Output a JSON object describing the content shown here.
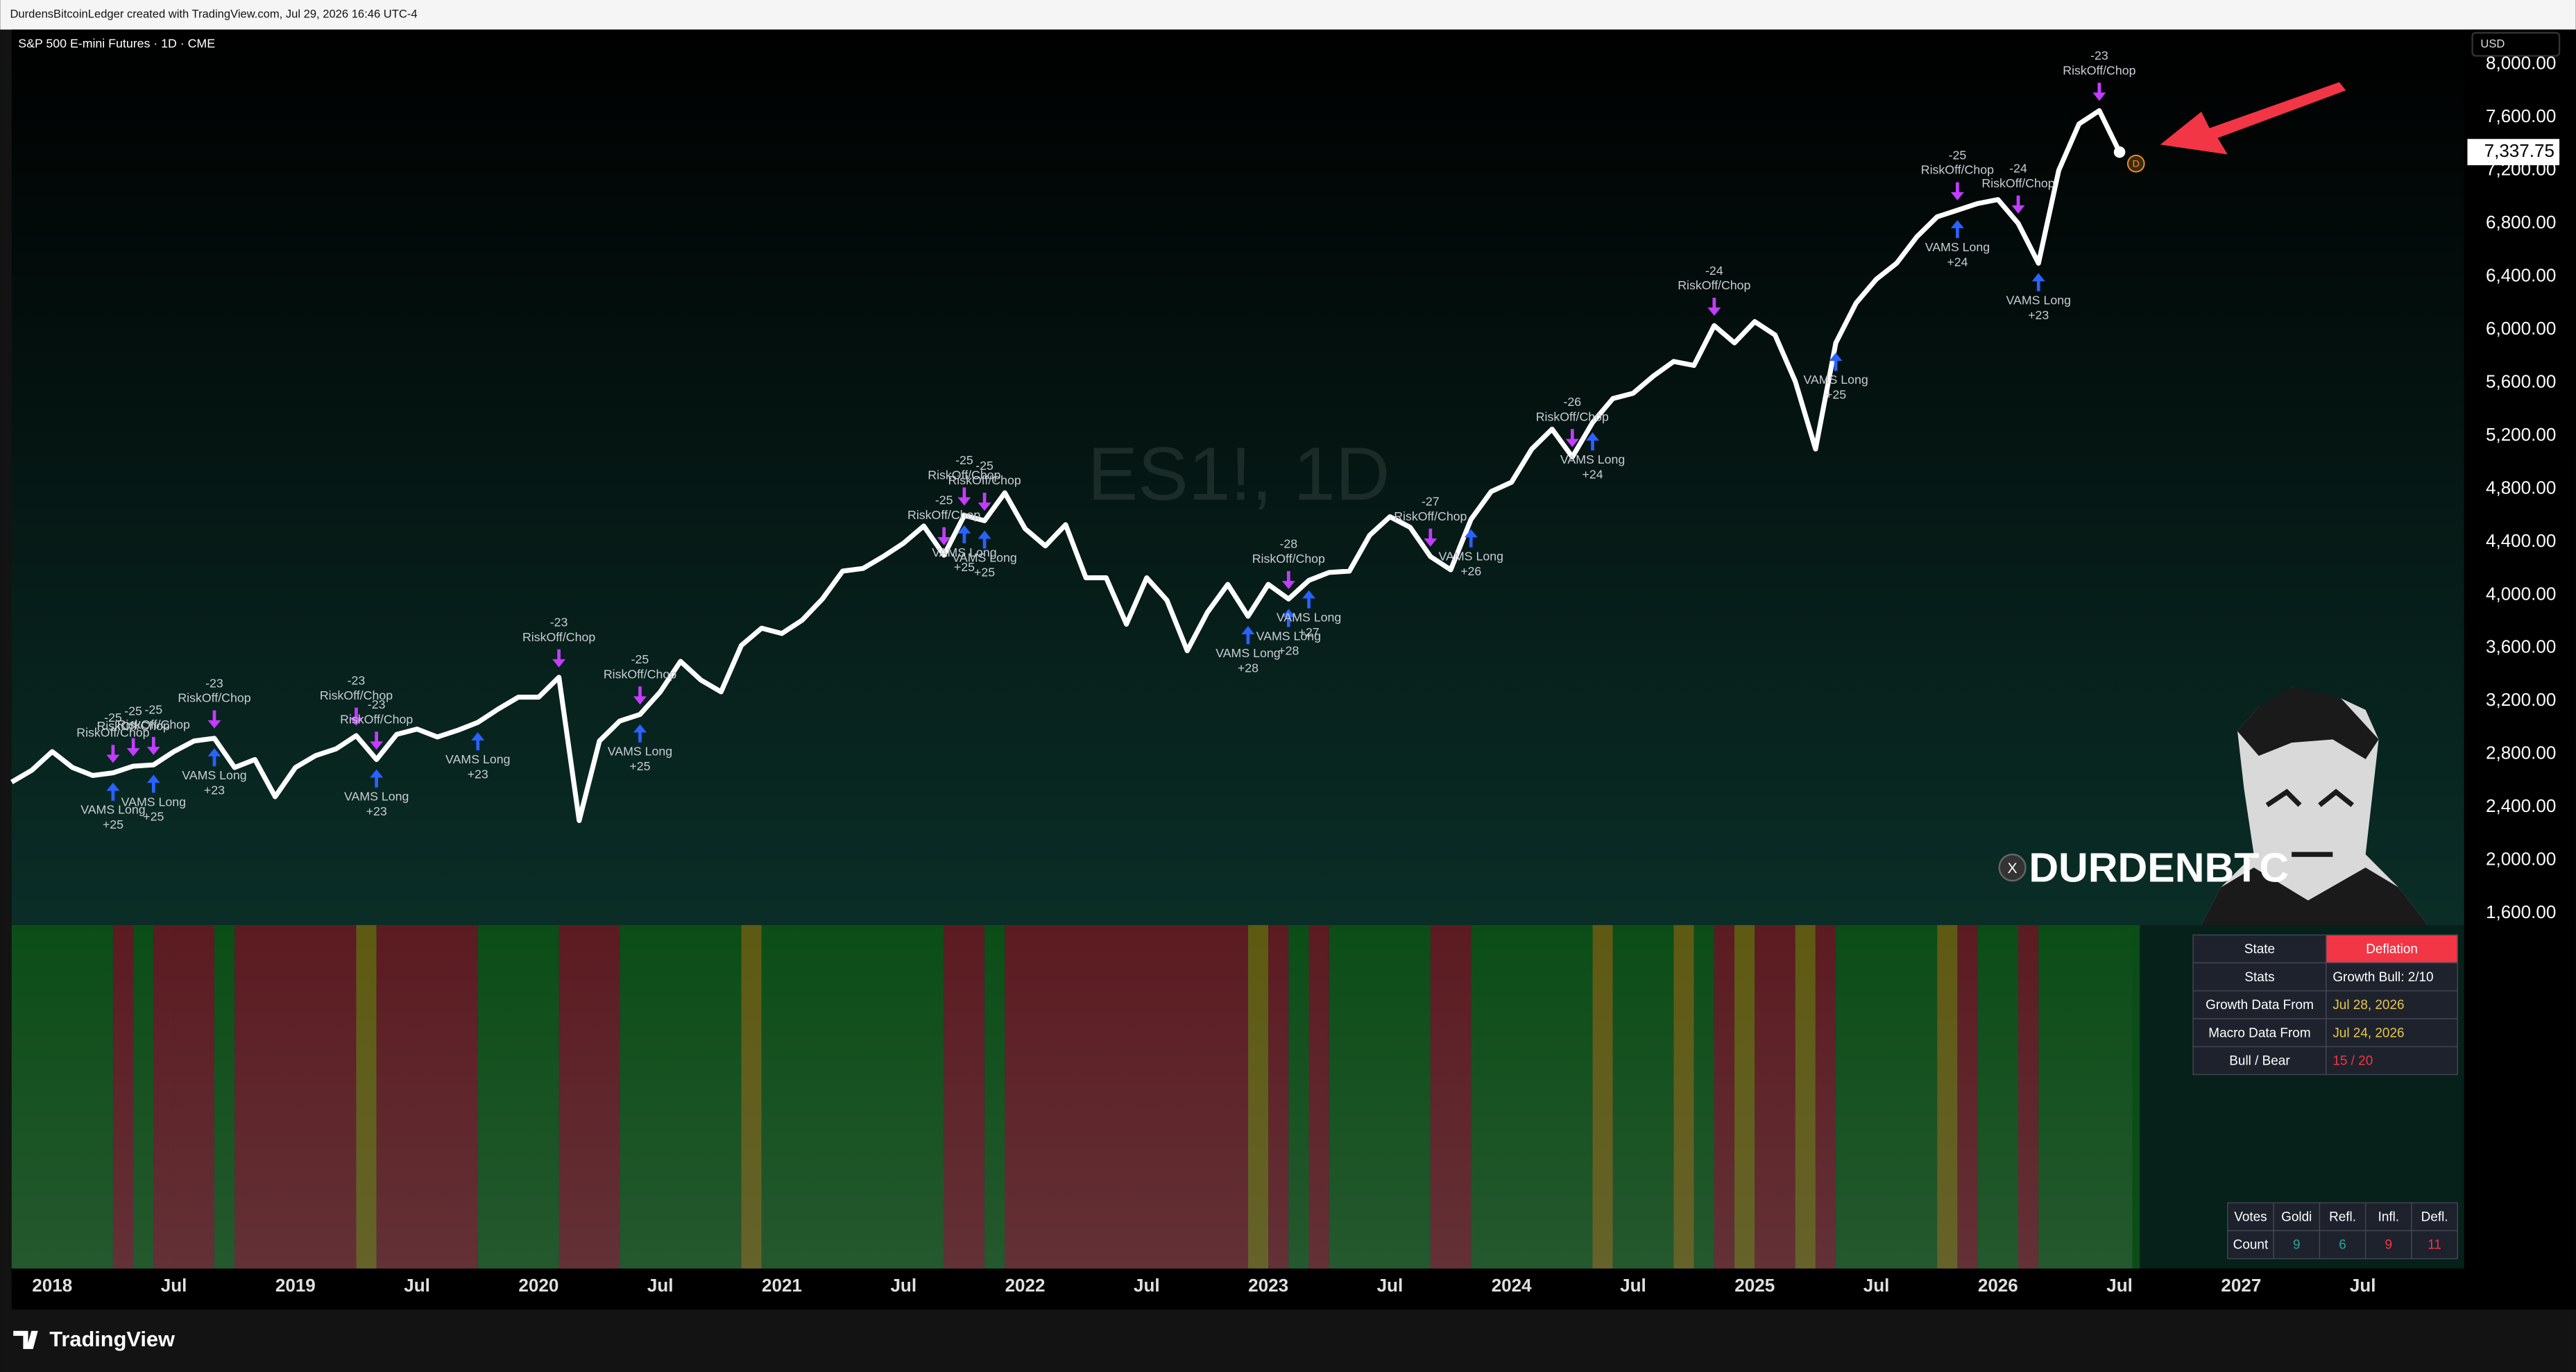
{
  "header": "DurdensBitcoinLedger created with TradingView.com, Jul 29, 2026 16:46 UTC-4",
  "symbol": "S&P 500 E-mini Futures · 1D · CME",
  "watermark": "ES1!, 1D",
  "currency": "USD",
  "brand": "TradingView",
  "handle": "DURDENBTC",
  "x_icon": "X",
  "interval_badge": "D",
  "last_price_label": "7,337.75",
  "chart_data": {
    "type": "line",
    "color": "#ffffff",
    "x": [
      "2017-11",
      "2017-12",
      "2018-01",
      "2018-02",
      "2018-03",
      "2018-04",
      "2018-05",
      "2018-06",
      "2018-07",
      "2018-08",
      "2018-09",
      "2018-10",
      "2018-11",
      "2018-12",
      "2019-01",
      "2019-02",
      "2019-03",
      "2019-04",
      "2019-05",
      "2019-06",
      "2019-07",
      "2019-08",
      "2019-09",
      "2019-10",
      "2019-11",
      "2019-12",
      "2020-01",
      "2020-02",
      "2020-03",
      "2020-04",
      "2020-05",
      "2020-06",
      "2020-07",
      "2020-08",
      "2020-09",
      "2020-10",
      "2020-11",
      "2020-12",
      "2021-01",
      "2021-02",
      "2021-03",
      "2021-04",
      "2021-05",
      "2021-06",
      "2021-07",
      "2021-08",
      "2021-09",
      "2021-10",
      "2021-11",
      "2021-12",
      "2022-01",
      "2022-02",
      "2022-03",
      "2022-04",
      "2022-05",
      "2022-06",
      "2022-07",
      "2022-08",
      "2022-09",
      "2022-10",
      "2022-11",
      "2022-12",
      "2023-01",
      "2023-02",
      "2023-03",
      "2023-04",
      "2023-05",
      "2023-06",
      "2023-07",
      "2023-08",
      "2023-09",
      "2023-10",
      "2023-11",
      "2023-12",
      "2024-01",
      "2024-02",
      "2024-03",
      "2024-04",
      "2024-05",
      "2024-06",
      "2024-07",
      "2024-08",
      "2024-09",
      "2024-10",
      "2024-11",
      "2024-12",
      "2025-01",
      "2025-02",
      "2025-03",
      "2025-04",
      "2025-05",
      "2025-06",
      "2025-07",
      "2025-08",
      "2025-09",
      "2025-10",
      "2025-11",
      "2025-12",
      "2026-01",
      "2026-02",
      "2026-03",
      "2026-04",
      "2026-05",
      "2026-06",
      "2026-07"
    ],
    "values": [
      2590,
      2680,
      2820,
      2700,
      2640,
      2660,
      2710,
      2720,
      2820,
      2900,
      2920,
      2700,
      2760,
      2480,
      2700,
      2790,
      2840,
      2940,
      2760,
      2950,
      2990,
      2930,
      2980,
      3040,
      3140,
      3230,
      3230,
      3380,
      2300,
      2900,
      3050,
      3100,
      3270,
      3500,
      3360,
      3270,
      3620,
      3750,
      3710,
      3810,
      3970,
      4180,
      4200,
      4290,
      4390,
      4520,
      4300,
      4600,
      4560,
      4770,
      4500,
      4370,
      4530,
      4130,
      4130,
      3780,
      4130,
      3960,
      3580,
      3870,
      4080,
      3840,
      4080,
      3970,
      4110,
      4170,
      4180,
      4450,
      4590,
      4510,
      4290,
      4190,
      4570,
      4780,
      4850,
      5100,
      5250,
      5040,
      5300,
      5480,
      5520,
      5650,
      5760,
      5730,
      6030,
      5900,
      6060,
      5960,
      5610,
      5100,
      5900,
      6200,
      6380,
      6500,
      6700,
      6850,
      6900,
      6950,
      6980,
      6800,
      6500,
      7200,
      7550,
      7650,
      7337.75
    ],
    "xlim": [
      "2017-11",
      "2027-12"
    ],
    "xticks": [
      {
        "value": "2018-01",
        "label": "2018"
      },
      {
        "value": "2018-07",
        "label": "Jul"
      },
      {
        "value": "2019-01",
        "label": "2019"
      },
      {
        "value": "2019-07",
        "label": "Jul"
      },
      {
        "value": "2020-01",
        "label": "2020"
      },
      {
        "value": "2020-07",
        "label": "Jul"
      },
      {
        "value": "2021-01",
        "label": "2021"
      },
      {
        "value": "2021-07",
        "label": "Jul"
      },
      {
        "value": "2022-01",
        "label": "2022"
      },
      {
        "value": "2022-07",
        "label": "Jul"
      },
      {
        "value": "2023-01",
        "label": "2023"
      },
      {
        "value": "2023-07",
        "label": "Jul"
      },
      {
        "value": "2024-01",
        "label": "2024"
      },
      {
        "value": "2024-07",
        "label": "Jul"
      },
      {
        "value": "2025-01",
        "label": "2025"
      },
      {
        "value": "2025-07",
        "label": "Jul"
      },
      {
        "value": "2026-01",
        "label": "2026"
      },
      {
        "value": "2026-07",
        "label": "Jul"
      },
      {
        "value": "2027-01",
        "label": "2027"
      },
      {
        "value": "2027-07",
        "label": "Jul"
      }
    ],
    "ylim": [
      1525,
      8261
    ],
    "yticks": [
      {
        "value": 1600,
        "label": "1,600.00"
      },
      {
        "value": 2000,
        "label": "2,000.00"
      },
      {
        "value": 2400,
        "label": "2,400.00"
      },
      {
        "value": 2800,
        "label": "2,800.00"
      },
      {
        "value": 3200,
        "label": "3,200.00"
      },
      {
        "value": 3600,
        "label": "3,600.00"
      },
      {
        "value": 4000,
        "label": "4,000.00"
      },
      {
        "value": 4400,
        "label": "4,400.00"
      },
      {
        "value": 4800,
        "label": "4,800.00"
      },
      {
        "value": 5200,
        "label": "5,200.00"
      },
      {
        "value": 5600,
        "label": "5,600.00"
      },
      {
        "value": 6000,
        "label": "6,000.00"
      },
      {
        "value": 6400,
        "label": "6,400.00"
      },
      {
        "value": 6800,
        "label": "6,800.00"
      },
      {
        "value": 7200,
        "label": "7,200.00"
      },
      {
        "value": 7600,
        "label": "7,600.00"
      },
      {
        "value": 8000,
        "label": "8,000.00"
      }
    ],
    "grid": false,
    "signals": [
      {
        "date": "2018-04",
        "label": "RiskOff/Chop",
        "score": -25
      },
      {
        "date": "2018-05",
        "label": "RiskOff/Chop",
        "score": -25
      },
      {
        "date": "2018-06",
        "label": "RiskOff/Chop",
        "score": -25
      },
      {
        "date": "2018-09",
        "label": "RiskOff/Chop",
        "score": -23
      },
      {
        "date": "2019-04",
        "label": "RiskOff/Chop",
        "score": -23
      },
      {
        "date": "2019-05",
        "label": "RiskOff/Chop",
        "score": -23
      },
      {
        "date": "2020-02",
        "label": "RiskOff/Chop",
        "score": -23
      },
      {
        "date": "2020-06",
        "label": "RiskOff/Chop",
        "score": -25
      },
      {
        "date": "2021-09",
        "label": "RiskOff/Chop",
        "score": -25
      },
      {
        "date": "2021-10",
        "label": "RiskOff/Chop",
        "score": -25
      },
      {
        "date": "2021-11",
        "label": "RiskOff/Chop",
        "score": -25
      },
      {
        "date": "2023-02",
        "label": "RiskOff/Chop",
        "score": -28
      },
      {
        "date": "2023-09",
        "label": "RiskOff/Chop",
        "score": -27
      },
      {
        "date": "2024-04",
        "label": "RiskOff/Chop",
        "score": -26
      },
      {
        "date": "2024-11",
        "label": "RiskOff/Chop",
        "score": -24
      },
      {
        "date": "2025-11",
        "label": "RiskOff/Chop",
        "score": -25
      },
      {
        "date": "2026-02",
        "label": "RiskOff/Chop",
        "score": -24
      },
      {
        "date": "2026-06",
        "label": "RiskOff/Chop",
        "score": -23
      },
      {
        "date": "2018-04",
        "label": "VAMS Long",
        "score": "+25"
      },
      {
        "date": "2018-06",
        "label": "VAMS Long",
        "score": "+25"
      },
      {
        "date": "2018-09",
        "label": "VAMS Long",
        "score": "+23"
      },
      {
        "date": "2019-05",
        "label": "VAMS Long",
        "score": "+23"
      },
      {
        "date": "2019-10",
        "label": "VAMS Long",
        "score": "+23"
      },
      {
        "date": "2020-06",
        "label": "VAMS Long",
        "score": "+25"
      },
      {
        "date": "2021-10",
        "label": "VAMS Long",
        "score": "+25"
      },
      {
        "date": "2021-11",
        "label": "VAMS Long",
        "score": "+25"
      },
      {
        "date": "2022-12",
        "label": "VAMS Long",
        "score": "+28"
      },
      {
        "date": "2023-02",
        "label": "VAMS Long",
        "score": "+28"
      },
      {
        "date": "2023-03",
        "label": "VAMS Long",
        "score": "+27"
      },
      {
        "date": "2023-11",
        "label": "VAMS Long",
        "score": "+26"
      },
      {
        "date": "2024-05",
        "label": "VAMS Long",
        "score": "+24"
      },
      {
        "date": "2025-05",
        "label": "VAMS Long",
        "score": "+25"
      },
      {
        "date": "2025-11",
        "label": "VAMS Long",
        "score": "+24"
      },
      {
        "date": "2026-03",
        "label": "VAMS Long",
        "score": "+23"
      }
    ],
    "bands": [
      {
        "from": "2017-11",
        "to": "2018-04",
        "color": "#0b4d17"
      },
      {
        "from": "2018-04",
        "to": "2018-05",
        "color": "#5b1b21"
      },
      {
        "from": "2018-05",
        "to": "2018-06",
        "color": "#0b4d17"
      },
      {
        "from": "2018-06",
        "to": "2018-07",
        "color": "#5b1b21"
      },
      {
        "from": "2018-07",
        "to": "2018-09",
        "color": "#5b1b21"
      },
      {
        "from": "2018-09",
        "to": "2018-10",
        "color": "#0b4d17"
      },
      {
        "from": "2018-10",
        "to": "2019-04",
        "color": "#5b1b21"
      },
      {
        "from": "2019-04",
        "to": "2019-05",
        "color": "#5e5a12"
      },
      {
        "from": "2019-05",
        "to": "2019-10",
        "color": "#5b1b21"
      },
      {
        "from": "2019-10",
        "to": "2020-02",
        "color": "#0b4d17"
      },
      {
        "from": "2020-02",
        "to": "2020-05",
        "color": "#5b1b21"
      },
      {
        "from": "2020-05",
        "to": "2020-11",
        "color": "#0b4d17"
      },
      {
        "from": "2020-11",
        "to": "2020-12",
        "color": "#5e5a12"
      },
      {
        "from": "2020-12",
        "to": "2021-09",
        "color": "#0b4d17"
      },
      {
        "from": "2021-09",
        "to": "2021-11",
        "color": "#5b1b21"
      },
      {
        "from": "2021-11",
        "to": "2021-12",
        "color": "#0b4d17"
      },
      {
        "from": "2021-12",
        "to": "2022-12",
        "color": "#5b1b21"
      },
      {
        "from": "2022-12",
        "to": "2023-01",
        "color": "#5e5a12"
      },
      {
        "from": "2023-01",
        "to": "2023-02",
        "color": "#5b1b21"
      },
      {
        "from": "2023-02",
        "to": "2023-03",
        "color": "#0b4d17"
      },
      {
        "from": "2023-03",
        "to": "2023-04",
        "color": "#5b1b21"
      },
      {
        "from": "2023-04",
        "to": "2023-09",
        "color": "#0b4d17"
      },
      {
        "from": "2023-09",
        "to": "2023-11",
        "color": "#5b1b21"
      },
      {
        "from": "2023-11",
        "to": "2024-05",
        "color": "#0b4d17"
      },
      {
        "from": "2024-05",
        "to": "2024-06",
        "color": "#5e5a12"
      },
      {
        "from": "2024-06",
        "to": "2024-09",
        "color": "#0b4d17"
      },
      {
        "from": "2024-09",
        "to": "2024-10",
        "color": "#5e5a12"
      },
      {
        "from": "2024-10",
        "to": "2024-11",
        "color": "#0b4d17"
      },
      {
        "from": "2024-11",
        "to": "2024-12",
        "color": "#5b1b21"
      },
      {
        "from": "2024-12",
        "to": "2025-01",
        "color": "#5e5a12"
      },
      {
        "from": "2025-01",
        "to": "2025-03",
        "color": "#5b1b21"
      },
      {
        "from": "2025-03",
        "to": "2025-04",
        "color": "#5e5a12"
      },
      {
        "from": "2025-04",
        "to": "2025-05",
        "color": "#5b1b21"
      },
      {
        "from": "2025-05",
        "to": "2025-10",
        "color": "#0b4d17"
      },
      {
        "from": "2025-10",
        "to": "2025-11",
        "color": "#5e5a12"
      },
      {
        "from": "2025-11",
        "to": "2025-12",
        "color": "#5b1b21"
      },
      {
        "from": "2025-12",
        "to": "2026-02",
        "color": "#0b4d17"
      },
      {
        "from": "2026-02",
        "to": "2026-03",
        "color": "#5b1b21"
      },
      {
        "from": "2026-03",
        "to": "2026-08",
        "color": "#0b4d17"
      }
    ]
  },
  "state_table": {
    "rows": [
      [
        "State",
        "Deflation"
      ],
      [
        "Stats",
        "Growth Bull: 2/10"
      ],
      [
        "Growth Data From",
        "Jul 28, 2026"
      ],
      [
        "Macro Data From",
        "Jul 24, 2026"
      ],
      [
        "Bull / Bear",
        "15 / 20"
      ]
    ]
  },
  "votes_table": {
    "header": [
      "Votes",
      "Goldi",
      "Refl.",
      "Infl.",
      "Defl."
    ],
    "rows": [
      [
        "Count",
        9,
        6,
        9,
        11
      ]
    ]
  }
}
